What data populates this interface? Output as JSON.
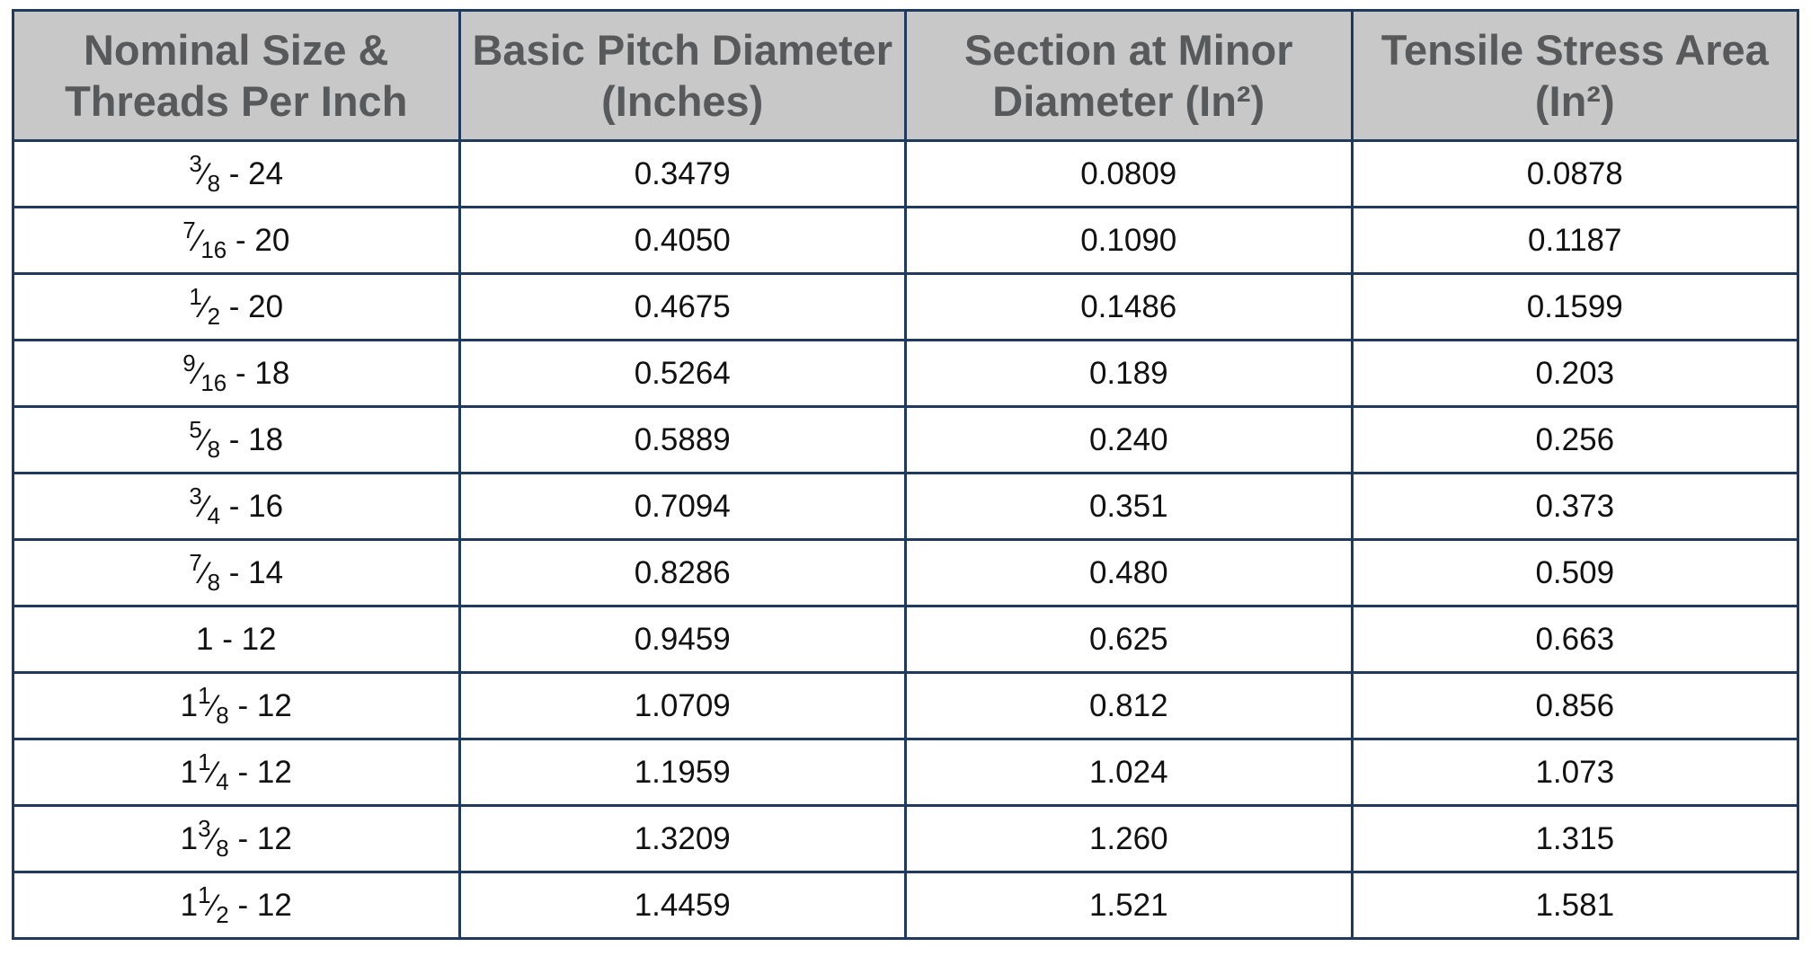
{
  "table": {
    "header": [
      "Nominal Size & Threads Per Inch",
      "Basic Pitch Diameter (Inches)",
      "Section at Minor Diameter (In²)",
      "Tensile Stress Area (In²)"
    ],
    "rows": [
      [
        {
          "numerator": "3",
          "denominator": "8",
          "threads": "- 24"
        },
        "0.3479",
        "0.0809",
        "0.0878"
      ],
      [
        {
          "numerator": "7",
          "denominator": "16",
          "threads": "- 20"
        },
        "0.4050",
        "0.1090",
        "0.1187"
      ],
      [
        {
          "numerator": "1",
          "denominator": "2",
          "threads": "- 20"
        },
        "0.4675",
        "0.1486",
        "0.1599"
      ],
      [
        {
          "numerator": "9",
          "denominator": "16",
          "threads": "- 18"
        },
        "0.5264",
        "0.189",
        "0.203"
      ],
      [
        {
          "numerator": "5",
          "denominator": "8",
          "threads": "- 18"
        },
        "0.5889",
        "0.240",
        "0.256"
      ],
      [
        {
          "numerator": "3",
          "denominator": "4",
          "threads": "- 16"
        },
        "0.7094",
        "0.351",
        "0.373"
      ],
      [
        {
          "numerator": "7",
          "denominator": "8",
          "threads": "- 14"
        },
        "0.8286",
        "0.480",
        "0.509"
      ],
      [
        {
          "whole": "1",
          "threads": "- 12"
        },
        "0.9459",
        "0.625",
        "0.663"
      ],
      [
        {
          "whole": "1",
          "numerator": "1",
          "denominator": "8",
          "threads": "- 12"
        },
        "1.0709",
        "0.812",
        "0.856"
      ],
      [
        {
          "whole": "1",
          "numerator": "1",
          "denominator": "4",
          "threads": "- 12"
        },
        "1.1959",
        "1.024",
        "1.073"
      ],
      [
        {
          "whole": "1",
          "numerator": "3",
          "denominator": "8",
          "threads": "- 12"
        },
        "1.3209",
        "1.260",
        "1.315"
      ],
      [
        {
          "whole": "1",
          "numerator": "1",
          "denominator": "2",
          "threads": "- 12"
        },
        "1.4459",
        "1.521",
        "1.581"
      ]
    ]
  }
}
